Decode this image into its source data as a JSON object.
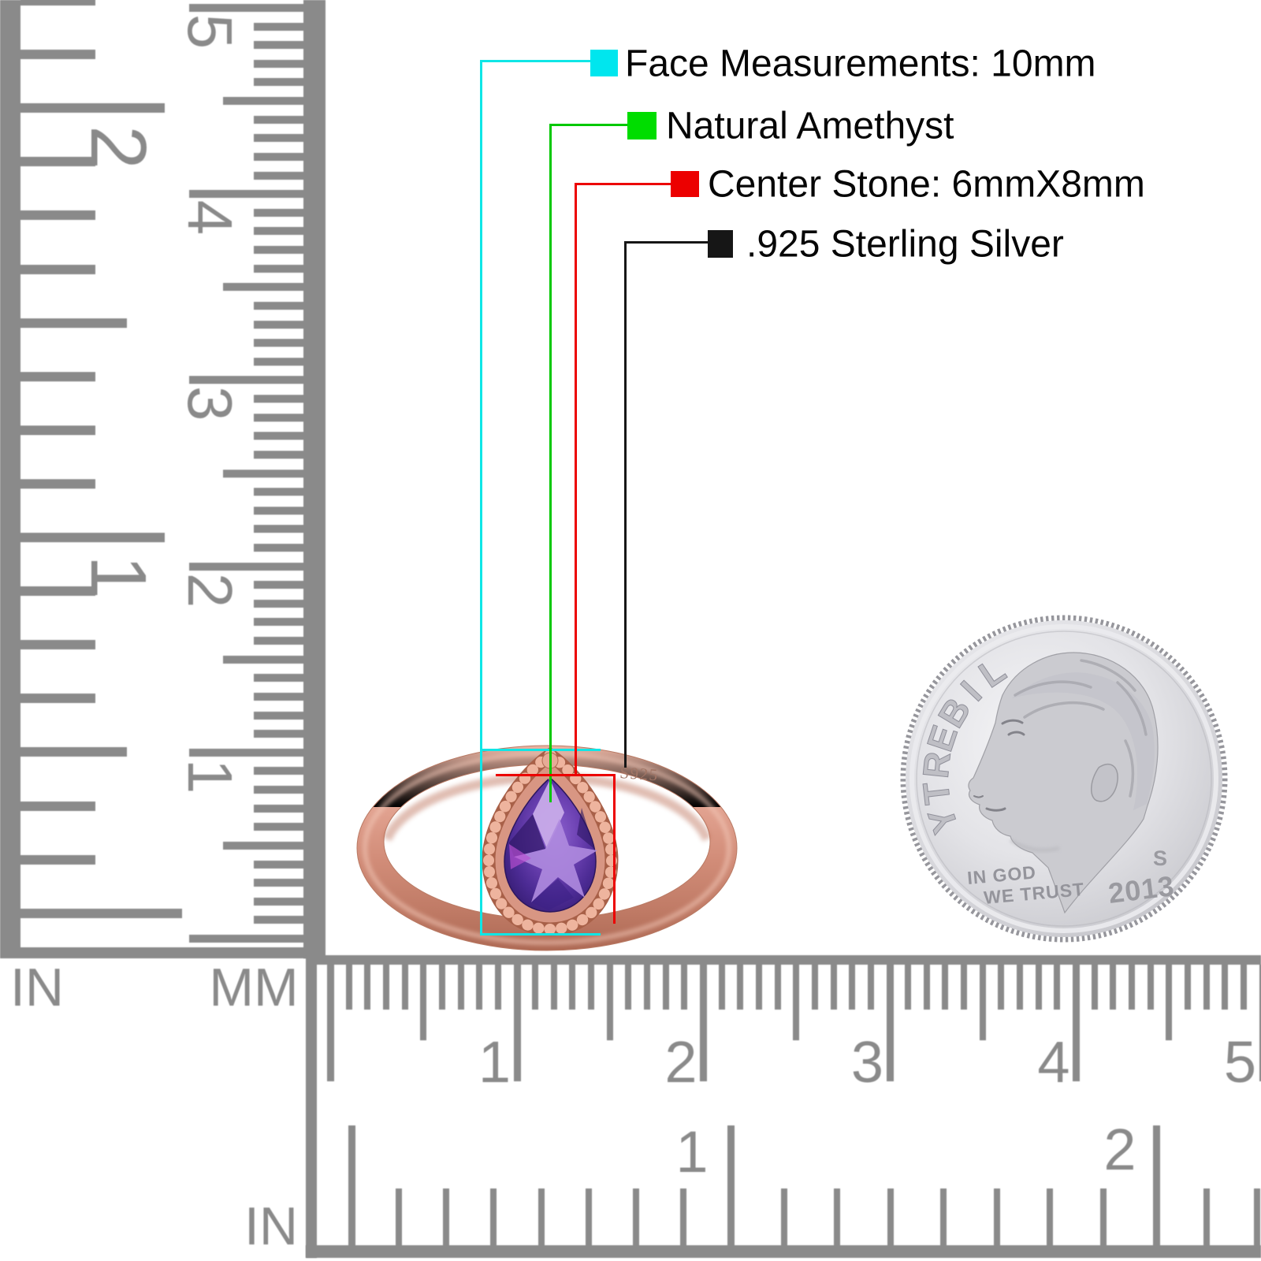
{
  "legend": {
    "items": [
      {
        "id": "face",
        "label": "Face Measurements: 10mm",
        "color": "#00e6ee"
      },
      {
        "id": "stone-type",
        "label": "Natural Amethyst",
        "color": "#00dd00"
      },
      {
        "id": "center-stone",
        "label": "Center Stone: 6mmX8mm",
        "color": "#ec0000"
      },
      {
        "id": "metal",
        "label": ".925 Sterling Silver",
        "color": "#161616"
      }
    ]
  },
  "rulers": {
    "tick_color": "#8a8a8a",
    "left_inch": {
      "unit": "IN",
      "numbers": [
        "2",
        "1"
      ]
    },
    "left_mm": {
      "unit": "MM",
      "numbers": [
        "5",
        "4",
        "3",
        "2",
        "1"
      ]
    },
    "bottom_mm": {
      "numbers": [
        "1",
        "2",
        "3",
        "4",
        "5"
      ]
    },
    "bottom_inch": {
      "unit": "IN",
      "numbers": [
        "1",
        "2"
      ]
    }
  },
  "ring": {
    "stamp": "S925",
    "band_color": "#d6927e",
    "stone_color": "#4c2b94",
    "bezel_style": "beaded"
  },
  "coin": {
    "liberty_letters": [
      "L",
      "I",
      "B",
      "E",
      "R",
      "T",
      "Y"
    ],
    "motto_line1": "IN GOD",
    "motto_line2": "WE TRUST",
    "year": "2013",
    "mint_mark": "S"
  }
}
